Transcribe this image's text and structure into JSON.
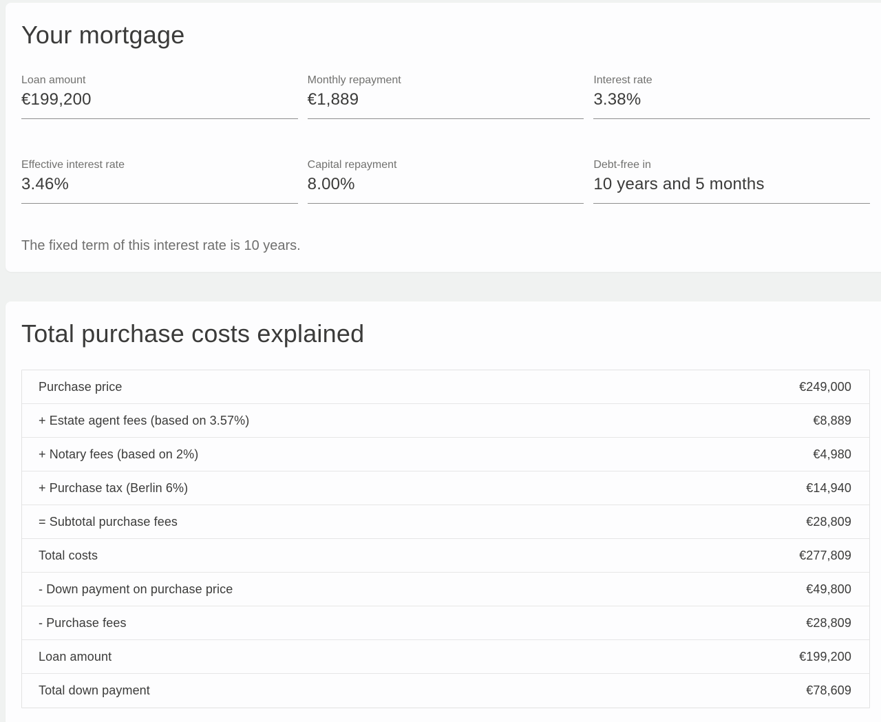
{
  "mortgage_card": {
    "title": "Your mortgage",
    "fields": [
      {
        "label": "Loan amount",
        "value": "€199,200"
      },
      {
        "label": "Monthly repayment",
        "value": "€1,889"
      },
      {
        "label": "Interest rate",
        "value": "3.38%"
      },
      {
        "label": "Effective interest rate",
        "value": "3.46%"
      },
      {
        "label": "Capital repayment",
        "value": "8.00%"
      },
      {
        "label": "Debt-free in",
        "value": "10 years and 5 months"
      }
    ],
    "note": "The fixed term of this interest rate is 10 years."
  },
  "costs_card": {
    "title": "Total purchase costs explained",
    "table": {
      "rows": [
        {
          "label": "Purchase price",
          "value": "€249,000"
        },
        {
          "label": "+ Estate agent fees (based on 3.57%)",
          "value": "€8,889"
        },
        {
          "label": "+ Notary fees (based on 2%)",
          "value": "€4,980"
        },
        {
          "label": "+ Purchase tax (Berlin 6%)",
          "value": "€14,940"
        },
        {
          "label": "= Subtotal purchase fees",
          "value": "€28,809"
        },
        {
          "label": "Total costs",
          "value": "€277,809"
        },
        {
          "label": "- Down payment on purchase price",
          "value": "€49,800"
        },
        {
          "label": "- Purchase fees",
          "value": "€28,809"
        },
        {
          "label": "Loan amount",
          "value": "€199,200"
        },
        {
          "label": "Total down payment",
          "value": "€78,609"
        }
      ]
    }
  },
  "colors": {
    "page_background": "#f0f2f1",
    "card_background": "#fdfdfe",
    "text_dark": "#3b3b3a",
    "text_gray": "#71716f",
    "field_underline": "#8d8d8d",
    "table_border": "#e2e2e2"
  }
}
